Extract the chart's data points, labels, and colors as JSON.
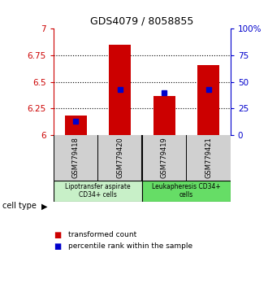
{
  "title": "GDS4079 / 8058855",
  "samples": [
    "GSM779418",
    "GSM779420",
    "GSM779419",
    "GSM779421"
  ],
  "red_values": [
    6.18,
    6.85,
    6.37,
    6.66
  ],
  "blue_percentiles": [
    13,
    43,
    40,
    43
  ],
  "ylim_left": [
    6.0,
    7.0
  ],
  "ylim_right": [
    0,
    100
  ],
  "yticks_left": [
    6.0,
    6.25,
    6.5,
    6.75,
    7.0
  ],
  "ytick_labels_left": [
    "6",
    "6.25",
    "6.5",
    "6.75",
    "7"
  ],
  "yticks_right": [
    0,
    25,
    50,
    75,
    100
  ],
  "ytick_labels_right": [
    "0",
    "25",
    "50",
    "75",
    "100%"
  ],
  "cell_types": [
    "Lipotransfer aspirate\nCD34+ cells",
    "Leukapheresis CD34+\ncells"
  ],
  "sample_bg_color": "#d0d0d0",
  "celltype1_color": "#c8f0c8",
  "celltype2_color": "#66dd66",
  "red_color": "#cc0000",
  "blue_color": "#0000cc",
  "baseline": 6.0,
  "bar_width": 0.5,
  "grid_ticks": [
    6.25,
    6.5,
    6.75
  ]
}
